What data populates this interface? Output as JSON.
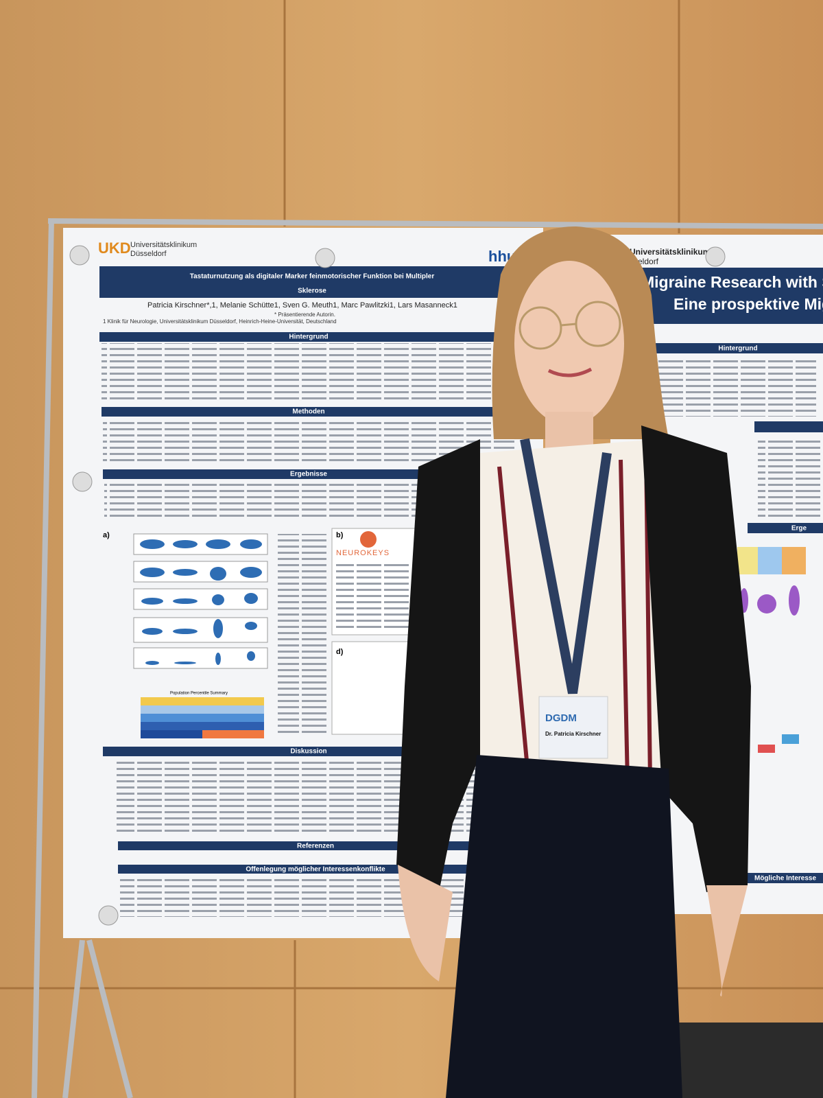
{
  "left_poster": {
    "logo": "UKD",
    "logo_name_1": "Universitätsklinikum",
    "logo_name_2": "Düsseldorf",
    "title_line1": "Tastaturnutzung als digitaler Marker feinmotorischer Funktion bei Multipler",
    "title_line2": "Sklerose",
    "authors": "Patricia Kirschner*,1, Melanie Schütte1, Sven G. Meuth1, Marc Pawlitzki1, Lars Masanneck1",
    "note": "* Präsentierende Autorin.",
    "affiliation": "1 Klinik für Neurologie, Universitätsklinikum Düsseldorf, Heinrich-Heine-Universität, Deutschland",
    "sections": [
      "Hintergrund",
      "Methoden",
      "Ergebnisse",
      "Diskussion",
      "Referenzen",
      "Offenlegung möglicher Interessenkonflikte"
    ],
    "panel_labels": [
      "a)",
      "b)",
      "d)"
    ],
    "brand": "NEUROKEYS",
    "figure_title": "Population Percentile Summary"
  },
  "right_poster": {
    "logo_short": "hhu",
    "logo_name": "Universitätsklinikum",
    "logo_city": "sseldorf",
    "title_line1": "Migraine Research with Sm",
    "title_line2": "Eine prospektive Migr",
    "sections": [
      "Hintergrund",
      "Erge",
      "Mögliche Interesse"
    ]
  },
  "badge": {
    "logo": "DGDM",
    "name": "Dr. Patricia Kirschner"
  }
}
